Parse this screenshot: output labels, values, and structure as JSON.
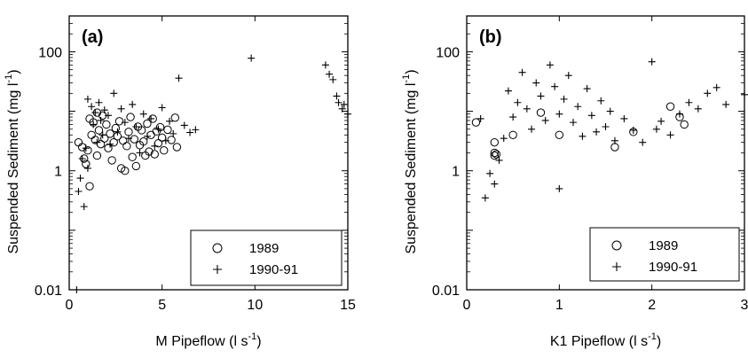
{
  "chart_data": [
    {
      "panel_label": "(a)",
      "type": "scatter",
      "xlabel": "M  Pipeflow  (l s",
      "xlabel_sup": "-1",
      "xlabel_close": ")",
      "ylabel": "Suspended  Sediment  (mg l",
      "ylabel_sup": "-1",
      "ylabel_close": ")",
      "xlim": [
        0,
        15
      ],
      "ylim": [
        0.01,
        400
      ],
      "yscale": "log",
      "xticks": [
        0,
        5,
        10,
        15
      ],
      "xtick_labels": [
        "0",
        "5",
        "10",
        "15"
      ],
      "yticks": [
        0.01,
        1,
        100
      ],
      "ytick_labels": [
        "0.01",
        "1",
        "100"
      ],
      "legend": {
        "placement": "bottom-right",
        "entries": [
          "1989",
          "1990-91"
        ]
      },
      "series": [
        {
          "name": "1989",
          "marker": "circle",
          "points": [
            [
              0.5,
              3.0
            ],
            [
              0.7,
              2.5
            ],
            [
              0.8,
              1.6
            ],
            [
              0.9,
              1.3
            ],
            [
              1.0,
              2.2
            ],
            [
              1.1,
              0.55
            ],
            [
              1.1,
              7.5
            ],
            [
              1.2,
              4.0
            ],
            [
              1.3,
              6.5
            ],
            [
              1.4,
              3.3
            ],
            [
              1.5,
              1.8
            ],
            [
              1.5,
              9.5
            ],
            [
              1.6,
              4.8
            ],
            [
              1.7,
              2.8
            ],
            [
              1.8,
              8.5
            ],
            [
              1.9,
              3.5
            ],
            [
              2.0,
              6.0
            ],
            [
              2.1,
              2.4
            ],
            [
              2.2,
              4.2
            ],
            [
              2.3,
              1.5
            ],
            [
              2.4,
              3.0
            ],
            [
              2.5,
              5.2
            ],
            [
              2.6,
              3.8
            ],
            [
              2.7,
              6.8
            ],
            [
              2.8,
              1.1
            ],
            [
              2.9,
              3.2
            ],
            [
              3.0,
              1.0
            ],
            [
              3.1,
              2.6
            ],
            [
              3.2,
              4.5
            ],
            [
              3.3,
              8.0
            ],
            [
              3.4,
              1.7
            ],
            [
              3.5,
              3.4
            ],
            [
              3.6,
              1.2
            ],
            [
              3.7,
              5.5
            ],
            [
              3.8,
              2.7
            ],
            [
              3.9,
              4.8
            ],
            [
              4.0,
              3.1
            ],
            [
              4.1,
              1.8
            ],
            [
              4.2,
              6.2
            ],
            [
              4.3,
              2.1
            ],
            [
              4.4,
              4.0
            ],
            [
              4.5,
              7.5
            ],
            [
              4.6,
              1.9
            ],
            [
              4.7,
              4.6
            ],
            [
              4.8,
              2.9
            ],
            [
              4.9,
              5.4
            ],
            [
              5.0,
              3.6
            ],
            [
              5.1,
              2.2
            ],
            [
              5.3,
              4.9
            ],
            [
              5.5,
              3.3
            ],
            [
              5.7,
              7.8
            ],
            [
              5.8,
              2.5
            ]
          ]
        },
        {
          "name": "1990-91",
          "marker": "plus",
          "points": [
            [
              0.5,
              0.45
            ],
            [
              0.6,
              0.75
            ],
            [
              0.7,
              1.6
            ],
            [
              0.8,
              0.25
            ],
            [
              0.9,
              2.4
            ],
            [
              1.0,
              16.0
            ],
            [
              1.0,
              1.1
            ],
            [
              1.2,
              12.0
            ],
            [
              1.3,
              6.0
            ],
            [
              1.4,
              9.5
            ],
            [
              1.5,
              3.0
            ],
            [
              1.6,
              14.0
            ],
            [
              1.7,
              7.0
            ],
            [
              1.8,
              4.0
            ],
            [
              1.9,
              10.5
            ],
            [
              2.1,
              8.5
            ],
            [
              2.2,
              2.8
            ],
            [
              2.4,
              20.0
            ],
            [
              2.6,
              4.5
            ],
            [
              2.8,
              11.0
            ],
            [
              3.0,
              6.5
            ],
            [
              3.2,
              3.5
            ],
            [
              3.4,
              13.0
            ],
            [
              3.6,
              5.5
            ],
            [
              3.8,
              2.0
            ],
            [
              4.0,
              9.0
            ],
            [
              4.2,
              3.8
            ],
            [
              4.4,
              7.5
            ],
            [
              4.6,
              2.6
            ],
            [
              4.8,
              5.0
            ],
            [
              5.0,
              11.5
            ],
            [
              5.2,
              3.2
            ],
            [
              5.4,
              6.8
            ],
            [
              5.6,
              4.2
            ],
            [
              5.9,
              36.0
            ],
            [
              6.2,
              5.8
            ],
            [
              6.5,
              4.4
            ],
            [
              6.8,
              4.9
            ],
            [
              9.8,
              78.0
            ],
            [
              13.8,
              60.0
            ],
            [
              14.0,
              42.0
            ],
            [
              14.2,
              34.0
            ],
            [
              14.4,
              18.0
            ],
            [
              14.5,
              14.0
            ],
            [
              14.7,
              11.0
            ],
            [
              14.8,
              13.0
            ],
            [
              15.0,
              9.0
            ],
            [
              0.4,
              0.01
            ]
          ]
        }
      ]
    },
    {
      "panel_label": "(b)",
      "type": "scatter",
      "xlabel": "K1  Pipeflow  (l s",
      "xlabel_sup": "-1",
      "xlabel_close": ")",
      "ylabel": "Suspended  Sediment  (mg l",
      "ylabel_sup": "-1",
      "ylabel_close": ")",
      "xlim": [
        0,
        3
      ],
      "ylim": [
        0.01,
        400
      ],
      "yscale": "log",
      "xticks": [
        0,
        1,
        2,
        3
      ],
      "xtick_labels": [
        "0",
        "1",
        "2",
        "3"
      ],
      "yticks": [
        0.01,
        1,
        100
      ],
      "ytick_labels": [
        "0.01",
        "1",
        "100"
      ],
      "legend": {
        "placement": "bottom-right",
        "entries": [
          "1989",
          "1990-91"
        ]
      },
      "series": [
        {
          "name": "1989",
          "marker": "circle",
          "points": [
            [
              0.1,
              6.5
            ],
            [
              0.3,
              3.0
            ],
            [
              0.3,
              2.0
            ],
            [
              0.3,
              1.8
            ],
            [
              0.32,
              1.9
            ],
            [
              0.5,
              4.0
            ],
            [
              0.8,
              9.5
            ],
            [
              1.0,
              4.0
            ],
            [
              1.6,
              2.5
            ],
            [
              1.8,
              4.5
            ],
            [
              2.2,
              12.0
            ],
            [
              2.3,
              8.0
            ],
            [
              2.35,
              6.0
            ]
          ]
        },
        {
          "name": "1990-91",
          "marker": "plus",
          "points": [
            [
              0.15,
              7.5
            ],
            [
              0.2,
              0.35
            ],
            [
              0.25,
              0.9
            ],
            [
              0.3,
              0.6
            ],
            [
              0.35,
              1.5
            ],
            [
              0.4,
              3.5
            ],
            [
              0.45,
              22.0
            ],
            [
              0.5,
              8.0
            ],
            [
              0.55,
              14.0
            ],
            [
              0.6,
              45.0
            ],
            [
              0.65,
              11.0
            ],
            [
              0.7,
              5.0
            ],
            [
              0.75,
              30.0
            ],
            [
              0.8,
              18.0
            ],
            [
              0.85,
              7.0
            ],
            [
              0.9,
              60.0
            ],
            [
              0.95,
              26.0
            ],
            [
              1.0,
              0.5
            ],
            [
              1.0,
              9.0
            ],
            [
              1.05,
              16.0
            ],
            [
              1.1,
              40.0
            ],
            [
              1.15,
              6.5
            ],
            [
              1.2,
              12.0
            ],
            [
              1.25,
              3.8
            ],
            [
              1.3,
              24.0
            ],
            [
              1.35,
              8.5
            ],
            [
              1.4,
              4.5
            ],
            [
              1.45,
              15.0
            ],
            [
              1.5,
              5.5
            ],
            [
              1.55,
              10.0
            ],
            [
              1.6,
              3.2
            ],
            [
              1.7,
              7.5
            ],
            [
              1.8,
              4.8
            ],
            [
              1.9,
              3.0
            ],
            [
              2.0,
              68.0
            ],
            [
              2.05,
              5.0
            ],
            [
              2.1,
              6.8
            ],
            [
              2.2,
              4.0
            ],
            [
              2.3,
              9.0
            ],
            [
              2.4,
              14.0
            ],
            [
              2.5,
              11.0
            ],
            [
              2.6,
              20.0
            ],
            [
              2.7,
              25.0
            ],
            [
              2.8,
              13.0
            ],
            [
              3.0,
              19.0
            ]
          ]
        }
      ]
    }
  ]
}
